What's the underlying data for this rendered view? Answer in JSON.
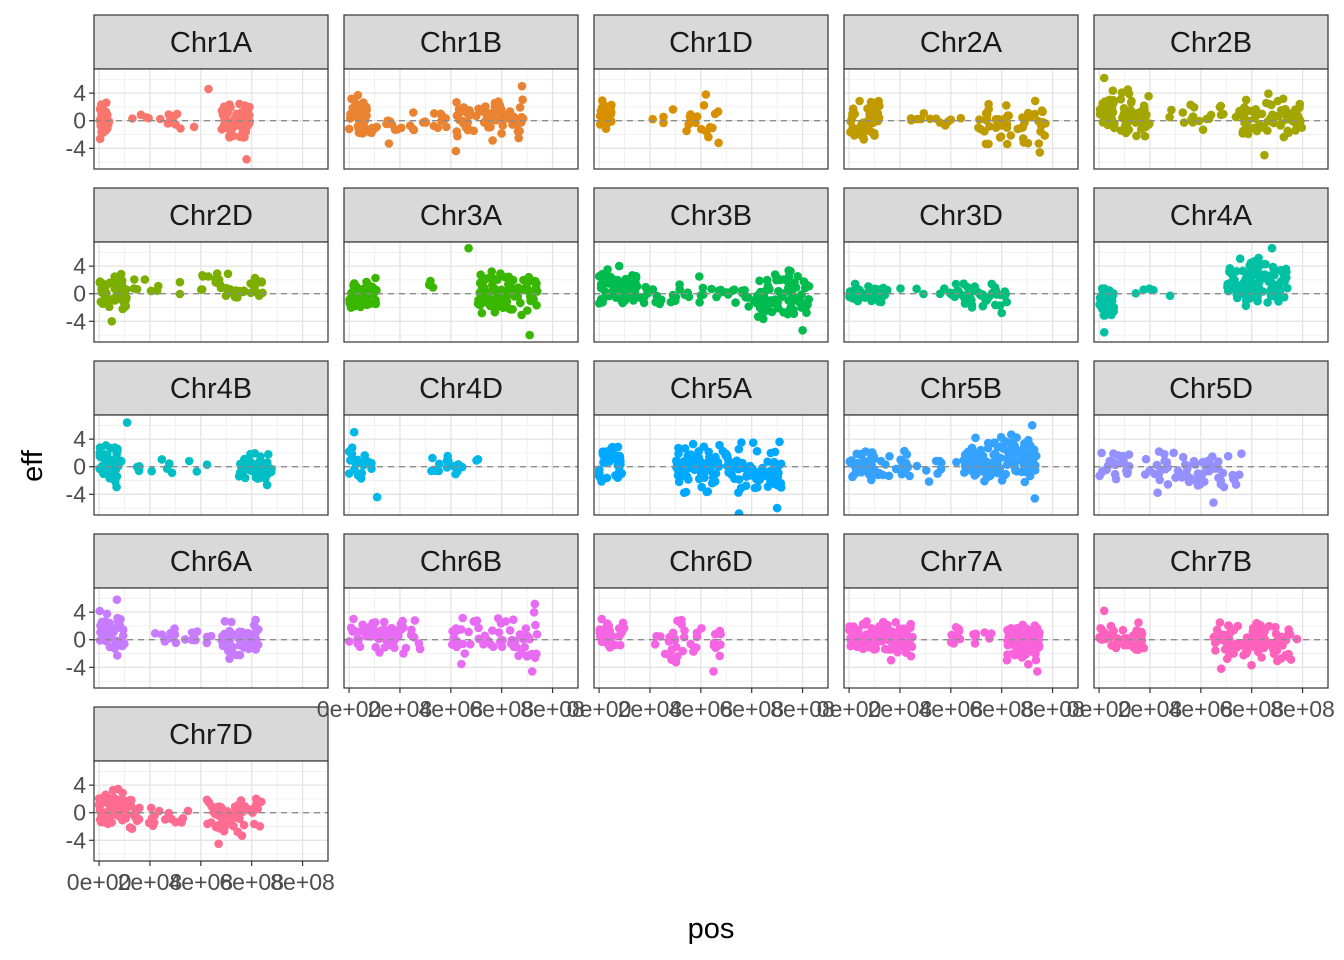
{
  "chart_data": {
    "type": "scatter",
    "title": "",
    "xlabel": "pos",
    "ylabel": "eff",
    "xlim": [
      -20000000.0,
      900000000.0
    ],
    "ylim": [
      -7,
      7.5
    ],
    "x_ticks": [
      0,
      200000000,
      400000000,
      600000000,
      800000000
    ],
    "x_tick_labels": [
      "0e+00",
      "2e+08",
      "4e+08",
      "6e+08",
      "8e+08"
    ],
    "y_ticks": [
      -4,
      0,
      4
    ],
    "y_tick_labels": [
      "-4",
      "0",
      "4"
    ],
    "reference_line": 0,
    "grid": true,
    "legend": "none",
    "facets": [
      {
        "name": "Chr1A",
        "color": "#F8766D",
        "max_pos": 594000000,
        "clusters": [
          [
            0,
            40000000,
            -3.5,
            3.5,
            45
          ],
          [
            120000000,
            380000000,
            -2,
            2,
            14
          ],
          [
            480000000,
            594000000,
            -3.5,
            3.5,
            60
          ]
        ],
        "extremes": [
          [
            430000000,
            4.6
          ],
          [
            580000000,
            -5.6
          ]
        ]
      },
      {
        "name": "Chr1B",
        "color": "#EA8331",
        "max_pos": 690000000,
        "clusters": [
          [
            0,
            70000000,
            -3.5,
            4.5,
            40
          ],
          [
            80000000,
            400000000,
            -4,
            3,
            28
          ],
          [
            420000000,
            690000000,
            -3.5,
            4.5,
            75
          ]
        ],
        "extremes": [
          [
            680000000,
            5.0
          ],
          [
            420000000,
            -4.4
          ]
        ]
      },
      {
        "name": "Chr1D",
        "color": "#D89000",
        "max_pos": 495000000,
        "clusters": [
          [
            0,
            50000000,
            -1.5,
            3.5,
            30
          ],
          [
            200000000,
            495000000,
            -3,
            3.5,
            18
          ]
        ],
        "extremes": [
          [
            420000000,
            3.8
          ],
          [
            470000000,
            -3.2
          ]
        ]
      },
      {
        "name": "Chr2A",
        "color": "#C09B00",
        "max_pos": 780000000,
        "clusters": [
          [
            0,
            120000000,
            -4.5,
            4.5,
            55
          ],
          [
            200000000,
            450000000,
            -1,
            1.5,
            12
          ],
          [
            500000000,
            780000000,
            -4.5,
            3.8,
            55
          ]
        ],
        "extremes": [
          [
            750000000,
            -4.6
          ]
        ]
      },
      {
        "name": "Chr2B",
        "color": "#A3A500",
        "max_pos": 800000000,
        "clusters": [
          [
            0,
            200000000,
            -3.5,
            5.5,
            75
          ],
          [
            250000000,
            550000000,
            -2,
            3,
            20
          ],
          [
            550000000,
            800000000,
            -4,
            4.5,
            65
          ]
        ],
        "extremes": [
          [
            20000000,
            6.2
          ],
          [
            650000000,
            -5.0
          ]
        ]
      },
      {
        "name": "Chr2D",
        "color": "#7CAE00",
        "max_pos": 650000000,
        "clusters": [
          [
            0,
            110000000,
            -4,
            3.8,
            50
          ],
          [
            120000000,
            350000000,
            -1,
            2.5,
            10
          ],
          [
            400000000,
            650000000,
            -2.5,
            4,
            40
          ]
        ],
        "extremes": [
          [
            50000000,
            -4.0
          ]
        ]
      },
      {
        "name": "Chr3A",
        "color": "#39B600",
        "max_pos": 750000000,
        "clusters": [
          [
            0,
            110000000,
            -4,
            3.5,
            45
          ],
          [
            300000000,
            350000000,
            0,
            3,
            3
          ],
          [
            500000000,
            750000000,
            -4.5,
            4.5,
            85
          ]
        ],
        "extremes": [
          [
            470000000,
            6.6
          ],
          [
            710000000,
            -6.0
          ]
        ]
      },
      {
        "name": "Chr3B",
        "color": "#00BB4E",
        "max_pos": 830000000,
        "clusters": [
          [
            0,
            150000000,
            -3,
            4.5,
            60
          ],
          [
            150000000,
            620000000,
            -3.5,
            3,
            45
          ],
          [
            620000000,
            830000000,
            -5,
            4.5,
            80
          ]
        ],
        "extremes": [
          [
            800000000,
            -5.3
          ]
        ]
      },
      {
        "name": "Chr3D",
        "color": "#00BF7D",
        "max_pos": 620000000,
        "clusters": [
          [
            0,
            150000000,
            -2,
            2,
            35
          ],
          [
            200000000,
            450000000,
            -1,
            2,
            12
          ],
          [
            450000000,
            620000000,
            -3.5,
            3.5,
            35
          ]
        ],
        "extremes": [
          [
            600000000,
            -2.8
          ]
        ]
      },
      {
        "name": "Chr4A",
        "color": "#00C1A3",
        "max_pos": 745000000,
        "clusters": [
          [
            0,
            60000000,
            -5,
            3,
            35
          ],
          [
            120000000,
            300000000,
            -0.5,
            1,
            5
          ],
          [
            500000000,
            745000000,
            -3.5,
            6.5,
            110
          ]
        ],
        "extremes": [
          [
            680000000,
            6.6
          ],
          [
            20000000,
            -5.6
          ]
        ]
      },
      {
        "name": "Chr4B",
        "color": "#00BFC4",
        "max_pos": 680000000,
        "clusters": [
          [
            0,
            80000000,
            -4,
            5.5,
            45
          ],
          [
            80000000,
            450000000,
            -2,
            2,
            12
          ],
          [
            550000000,
            680000000,
            -3,
            2.5,
            60
          ]
        ],
        "extremes": [
          [
            110000000,
            6.4
          ]
        ]
      },
      {
        "name": "Chr4D",
        "color": "#00B8E7",
        "max_pos": 510000000,
        "clusters": [
          [
            0,
            90000000,
            -4,
            5,
            20
          ],
          [
            320000000,
            510000000,
            -2,
            3,
            18
          ]
        ],
        "extremes": [
          [
            20000000,
            5.0
          ],
          [
            110000000,
            -4.4
          ]
        ]
      },
      {
        "name": "Chr5A",
        "color": "#00A9FF",
        "max_pos": 720000000,
        "clusters": [
          [
            0,
            90000000,
            -4,
            5,
            40
          ],
          [
            300000000,
            720000000,
            -5,
            4.5,
            140
          ]
        ],
        "extremes": [
          [
            550000000,
            -6.8
          ],
          [
            700000000,
            -6.0
          ]
        ]
      },
      {
        "name": "Chr5B",
        "color": "#35A2FF",
        "max_pos": 740000000,
        "clusters": [
          [
            0,
            100000000,
            -3.5,
            4,
            40
          ],
          [
            100000000,
            450000000,
            -2.5,
            3,
            30
          ],
          [
            450000000,
            740000000,
            -3.5,
            6,
            120
          ]
        ],
        "extremes": [
          [
            720000000,
            6.0
          ],
          [
            730000000,
            -4.6
          ]
        ]
      },
      {
        "name": "Chr5D",
        "color": "#9590FF",
        "max_pos": 560000000,
        "clusters": [
          [
            0,
            120000000,
            -2.5,
            3.5,
            25
          ],
          [
            180000000,
            560000000,
            -5,
            3.5,
            70
          ]
        ],
        "extremes": [
          [
            450000000,
            -5.2
          ]
        ]
      },
      {
        "name": "Chr6A",
        "color": "#C77CFF",
        "max_pos": 630000000,
        "clusters": [
          [
            0,
            100000000,
            -3.5,
            5,
            40
          ],
          [
            200000000,
            480000000,
            -1,
            1.8,
            18
          ],
          [
            480000000,
            630000000,
            -3.5,
            3.5,
            55
          ]
        ],
        "extremes": [
          [
            70000000,
            5.8
          ]
        ]
      },
      {
        "name": "Chr6B",
        "color": "#E76BF3",
        "max_pos": 740000000,
        "clusters": [
          [
            0,
            280000000,
            -3.5,
            4.5,
            60
          ],
          [
            400000000,
            740000000,
            -4.5,
            5,
            60
          ]
        ],
        "extremes": [
          [
            730000000,
            5.2
          ],
          [
            720000000,
            -4.6
          ]
        ]
      },
      {
        "name": "Chr6D",
        "color": "#F564E3",
        "max_pos": 480000000,
        "clusters": [
          [
            0,
            100000000,
            -2,
            4,
            35
          ],
          [
            220000000,
            480000000,
            -4.5,
            4,
            35
          ]
        ],
        "extremes": [
          [
            450000000,
            -4.6
          ]
        ]
      },
      {
        "name": "Chr7A",
        "color": "#FA62DB",
        "max_pos": 750000000,
        "clusters": [
          [
            0,
            250000000,
            -3.5,
            4,
            120
          ],
          [
            400000000,
            560000000,
            -2,
            3.5,
            15
          ],
          [
            620000000,
            750000000,
            -4.5,
            4,
            70
          ]
        ],
        "extremes": [
          [
            740000000,
            -4.6
          ]
        ]
      },
      {
        "name": "Chr7B",
        "color": "#FF62BC",
        "max_pos": 780000000,
        "clusters": [
          [
            0,
            180000000,
            -2.5,
            3,
            45
          ],
          [
            450000000,
            780000000,
            -4.5,
            4,
            110
          ]
        ],
        "extremes": [
          [
            20000000,
            4.2
          ],
          [
            480000000,
            -4.2
          ]
        ]
      },
      {
        "name": "Chr7D",
        "color": "#FF6C91",
        "max_pos": 640000000,
        "clusters": [
          [
            0,
            150000000,
            -3.5,
            4,
            70
          ],
          [
            150000000,
            350000000,
            -3,
            2,
            18
          ],
          [
            420000000,
            640000000,
            -4.5,
            3.8,
            55
          ]
        ],
        "extremes": [
          [
            470000000,
            -4.5
          ]
        ]
      }
    ]
  }
}
